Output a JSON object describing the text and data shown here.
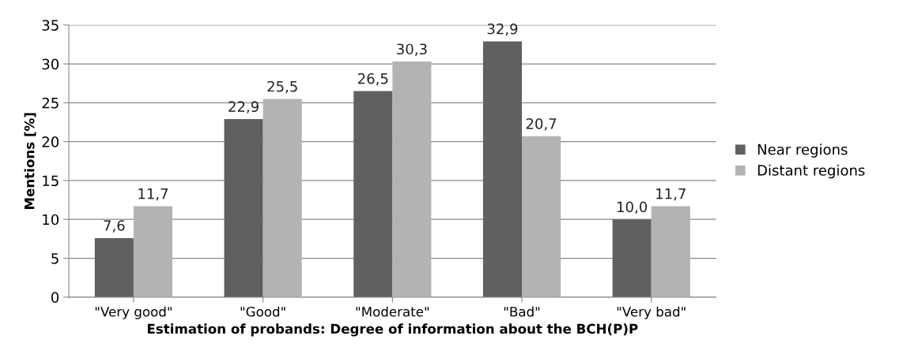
{
  "chart_data": {
    "type": "bar",
    "xlabel": "Estimation of probands: Degree of information about the BCH(P)P",
    "ylabel": "Mentions [%]",
    "categories": [
      "\"Very good\"",
      "\"Good\"",
      "\"Moderate\"",
      "\"Bad\"",
      "\"Very bad\""
    ],
    "series": [
      {
        "name": "Near regions",
        "color": "#606060",
        "values": [
          7.6,
          22.9,
          26.5,
          32.9,
          10.0
        ],
        "value_labels": [
          "7,6",
          "22,9",
          "26,5",
          "32,9",
          "10,0"
        ]
      },
      {
        "name": "Distant regions",
        "color": "#b3b3b3",
        "values": [
          11.7,
          25.5,
          30.3,
          20.7,
          11.7
        ],
        "value_labels": [
          "11,7",
          "25,5",
          "30,3",
          "20,7",
          "11,7"
        ]
      }
    ],
    "ylim": [
      0,
      35
    ],
    "yticks": [
      0,
      5,
      10,
      15,
      20,
      25,
      30,
      35
    ],
    "grid": "y",
    "legend": "right"
  }
}
